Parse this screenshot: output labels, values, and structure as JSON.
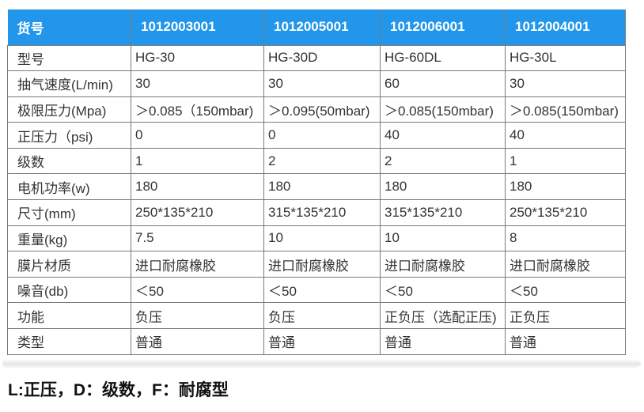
{
  "colors": {
    "header_bg": "#2196EB",
    "header_text": "#ffffff",
    "border": "#7a7a7a",
    "body_text": "#333333"
  },
  "table": {
    "header": [
      "货号",
      "1012003001",
      "1012005001",
      "1012006001",
      "1012004001"
    ],
    "rows": [
      {
        "label": "型号",
        "values": [
          "HG-30",
          "HG-30D",
          "HG-60DL",
          "HG-30L"
        ]
      },
      {
        "label": "抽气速度(L/min)",
        "values": [
          "30",
          "30",
          "60",
          "30"
        ]
      },
      {
        "label": "极限压力(Mpa)",
        "values": [
          "＞0.085（150mbar)",
          "＞0.095(50mbar)",
          "＞0.085(150mbar)",
          "＞0.085(150mbar)"
        ]
      },
      {
        "label": "正压力（psi)",
        "values": [
          "0",
          "0",
          "40",
          "40"
        ]
      },
      {
        "label": "级数",
        "values": [
          "1",
          "2",
          "2",
          "1"
        ]
      },
      {
        "label": "电机功率(w)",
        "values": [
          "180",
          "180",
          "180",
          "180"
        ]
      },
      {
        "label": "尺寸(mm)",
        "values": [
          "250*135*210",
          "315*135*210",
          "315*135*210",
          "250*135*210"
        ]
      },
      {
        "label": "重量(kg)",
        "values": [
          "7.5",
          "10",
          "10",
          "8"
        ]
      },
      {
        "label": "膜片材质",
        "values": [
          "进口耐腐橡胶",
          "进口耐腐橡胶",
          "进口耐腐橡胶",
          "进口耐腐橡胶"
        ]
      },
      {
        "label": "噪音(db)",
        "values": [
          "＜50",
          "＜50",
          "＜50",
          "＜50"
        ]
      },
      {
        "label": "功能",
        "values": [
          "负压",
          "负压",
          "正负压（选配正压)",
          "正负压"
        ]
      },
      {
        "label": "类型",
        "values": [
          "普通",
          "普通",
          "普通",
          "普通"
        ]
      }
    ]
  },
  "footer": {
    "note": "L:正压，D：级数，F：耐腐型"
  }
}
